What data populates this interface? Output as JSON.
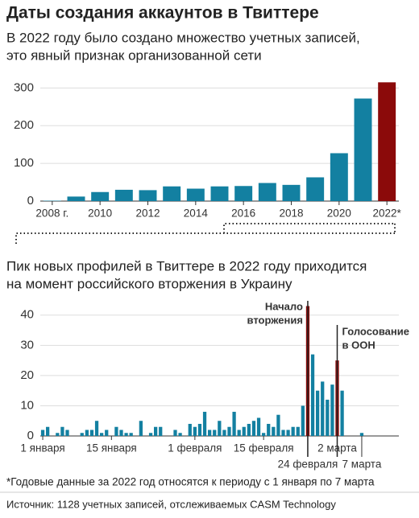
{
  "chart_data": [
    {
      "type": "bar",
      "title": "Даты создания аккаунтов в Твиттере",
      "subtitle": [
        "В 2022 году было создано множество учетных записей,",
        "это явный признак организованной сети"
      ],
      "categories": [
        "2008 г.",
        null,
        "2010",
        null,
        "2012",
        null,
        "2014",
        null,
        "2016",
        null,
        "2018",
        null,
        "2020",
        null,
        "2022*"
      ],
      "values": [
        1,
        12,
        24,
        30,
        29,
        39,
        33,
        39,
        40,
        48,
        43,
        63,
        127,
        272,
        315
      ],
      "colors": [
        "#1380a1",
        "#1380a1",
        "#1380a1",
        "#1380a1",
        "#1380a1",
        "#1380a1",
        "#1380a1",
        "#1380a1",
        "#1380a1",
        "#1380a1",
        "#1380a1",
        "#1380a1",
        "#1380a1",
        "#1380a1",
        "#8b0a0a"
      ],
      "ylim": [
        0,
        320
      ],
      "yticks": [
        0,
        100,
        200,
        300
      ],
      "grid": true
    },
    {
      "type": "bar",
      "subtitle": [
        "Пик новых профилей в Твиттере в 2022 году приходится",
        "на момент российского вторжения в Украину"
      ],
      "categories": [
        "1 января",
        null,
        null,
        null,
        null,
        null,
        null,
        null,
        null,
        null,
        null,
        null,
        null,
        null,
        "15 января",
        null,
        null,
        null,
        null,
        null,
        null,
        null,
        null,
        null,
        null,
        null,
        null,
        null,
        null,
        null,
        null,
        "1 февраля",
        null,
        null,
        null,
        null,
        null,
        null,
        null,
        null,
        null,
        null,
        null,
        null,
        null,
        "15 февраля",
        null,
        null,
        null,
        null,
        null,
        null,
        null,
        null,
        "24 февраля",
        null,
        null,
        null,
        null,
        null,
        "2 марта",
        null,
        null,
        null,
        null,
        "7 марта"
      ],
      "values": [
        2,
        3,
        0,
        1,
        3,
        2,
        0,
        0,
        1,
        2,
        2,
        5,
        1,
        2,
        0,
        3,
        2,
        1,
        1,
        0,
        5,
        0,
        1,
        3,
        3,
        0,
        0,
        2,
        1,
        0,
        4,
        3,
        4,
        8,
        2,
        2,
        5,
        2,
        3,
        8,
        2,
        3,
        4,
        5,
        6,
        1,
        4,
        3,
        7,
        2,
        2,
        3,
        3,
        10,
        43,
        27,
        15,
        18,
        12,
        17,
        25,
        15,
        0,
        0,
        0,
        1
      ],
      "colors": [
        "#1380a1",
        "#1380a1",
        "#1380a1",
        "#1380a1",
        "#1380a1",
        "#1380a1",
        "#1380a1",
        "#1380a1",
        "#1380a1",
        "#1380a1",
        "#1380a1",
        "#1380a1",
        "#1380a1",
        "#1380a1",
        "#1380a1",
        "#1380a1",
        "#1380a1",
        "#1380a1",
        "#1380a1",
        "#1380a1",
        "#1380a1",
        "#1380a1",
        "#1380a1",
        "#1380a1",
        "#1380a1",
        "#1380a1",
        "#1380a1",
        "#1380a1",
        "#1380a1",
        "#1380a1",
        "#1380a1",
        "#1380a1",
        "#1380a1",
        "#1380a1",
        "#1380a1",
        "#1380a1",
        "#1380a1",
        "#1380a1",
        "#1380a1",
        "#1380a1",
        "#1380a1",
        "#1380a1",
        "#1380a1",
        "#1380a1",
        "#1380a1",
        "#1380a1",
        "#1380a1",
        "#1380a1",
        "#1380a1",
        "#1380a1",
        "#1380a1",
        "#1380a1",
        "#1380a1",
        "#1380a1",
        "#8b0a0a",
        "#1380a1",
        "#1380a1",
        "#1380a1",
        "#1380a1",
        "#1380a1",
        "#8b0a0a",
        "#1380a1",
        "#1380a1",
        "#1380a1",
        "#1380a1",
        "#1380a1"
      ],
      "annotations": [
        {
          "text": [
            "Начало",
            "вторжения"
          ],
          "index": 54
        },
        {
          "text": [
            "Голосование",
            "в ООН"
          ],
          "index": 60
        }
      ],
      "ylim": [
        0,
        45
      ],
      "yticks": [
        0,
        10,
        20,
        30,
        40
      ],
      "grid": true
    }
  ],
  "footnote": "*Годовые данные за 2022 год относятся к периоду с 1 января по 7 марта",
  "source": "Источник: 1128 учетных записей, отслеживаемых CASM Technology"
}
